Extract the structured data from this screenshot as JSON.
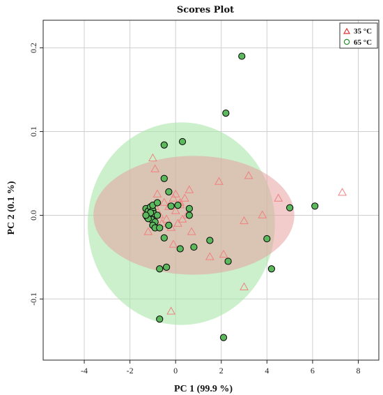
{
  "chart_data": {
    "type": "scatter",
    "title": "Scores Plot",
    "xlabel": "PC 1 (99.9 %)",
    "ylabel": "PC 2 (0.1 %)",
    "xlim": [
      -5.8,
      8.9
    ],
    "ylim": [
      -0.173,
      0.233
    ],
    "x_ticks": [
      -4,
      -2,
      0,
      2,
      4,
      6,
      8
    ],
    "y_ticks": [
      -0.1,
      0.0,
      0.1,
      0.2
    ],
    "grid": true,
    "legend_position": "top-right",
    "series": [
      {
        "name": "35 °C",
        "marker": "triangle",
        "color": "#f08080",
        "fill": "#f4c4c4",
        "ellipse": {
          "cx": 0.8,
          "cy": 0.0,
          "rx": 4.4,
          "ry": 0.071
        },
        "points": [
          [
            -1.3,
            0.005
          ],
          [
            -1.2,
            -0.02
          ],
          [
            -1.0,
            0.068
          ],
          [
            -0.9,
            0.055
          ],
          [
            -0.8,
            0.025
          ],
          [
            -0.7,
            0.0
          ],
          [
            -0.6,
            -0.01
          ],
          [
            -0.5,
            0.015
          ],
          [
            -0.4,
            -0.005
          ],
          [
            -0.3,
            0.01
          ],
          [
            -0.2,
            -0.015
          ],
          [
            -0.1,
            0.02
          ],
          [
            0.0,
            0.005
          ],
          [
            0.1,
            -0.01
          ],
          [
            0.2,
            0.015
          ],
          [
            0.3,
            -0.005
          ],
          [
            0.4,
            0.02
          ],
          [
            0.5,
            0.0
          ],
          [
            0.6,
            0.03
          ],
          [
            0.7,
            -0.02
          ],
          [
            -0.1,
            -0.035
          ],
          [
            0.2,
            0.012
          ],
          [
            1.9,
            0.04
          ],
          [
            3.2,
            0.047
          ],
          [
            3.8,
            0.0
          ],
          [
            4.5,
            0.02
          ],
          [
            3.0,
            -0.007
          ],
          [
            1.5,
            -0.05
          ],
          [
            2.1,
            -0.047
          ],
          [
            3.0,
            -0.086
          ],
          [
            -0.2,
            -0.115
          ],
          [
            7.3,
            0.027
          ],
          [
            0.0,
            0.025
          ],
          [
            -0.9,
            0.01
          ]
        ]
      },
      {
        "name": "65 °C",
        "marker": "circle",
        "color": "#2e8b2e",
        "fill": "#5cb85c",
        "ellipse": {
          "cx": 0.25,
          "cy": -0.01,
          "rx": 4.1,
          "ry": 0.121
        },
        "points": [
          [
            -1.3,
            0.008
          ],
          [
            -1.2,
            0.005
          ],
          [
            -1.25,
            -0.002
          ],
          [
            -1.1,
            0.01
          ],
          [
            -1.15,
            0.0
          ],
          [
            -1.0,
            0.006
          ],
          [
            -1.05,
            -0.005
          ],
          [
            -0.95,
            0.002
          ],
          [
            -0.9,
            -0.008
          ],
          [
            -1.2,
            -0.004
          ],
          [
            -1.1,
            0.003
          ],
          [
            -1.0,
            -0.012
          ],
          [
            -0.9,
            -0.015
          ],
          [
            -1.3,
            0.0
          ],
          [
            -1.0,
            0.012
          ],
          [
            -0.8,
            0.015
          ],
          [
            -0.8,
            0.0
          ],
          [
            -0.7,
            -0.015
          ],
          [
            -0.5,
            0.084
          ],
          [
            -0.5,
            0.044
          ],
          [
            -0.3,
            0.028
          ],
          [
            -0.2,
            0.011
          ],
          [
            -0.3,
            -0.012
          ],
          [
            -0.5,
            -0.027
          ],
          [
            -0.7,
            -0.064
          ],
          [
            -0.4,
            -0.062
          ],
          [
            -0.7,
            -0.124
          ],
          [
            0.1,
            0.012
          ],
          [
            0.2,
            -0.04
          ],
          [
            0.3,
            0.088
          ],
          [
            0.6,
            0.008
          ],
          [
            0.6,
            0.0
          ],
          [
            0.8,
            -0.038
          ],
          [
            1.5,
            -0.03
          ],
          [
            2.2,
            0.122
          ],
          [
            2.3,
            -0.055
          ],
          [
            2.9,
            0.19
          ],
          [
            2.1,
            -0.146
          ],
          [
            4.0,
            -0.028
          ],
          [
            4.2,
            -0.064
          ],
          [
            5.0,
            0.009
          ],
          [
            6.1,
            0.011
          ]
        ]
      }
    ]
  }
}
